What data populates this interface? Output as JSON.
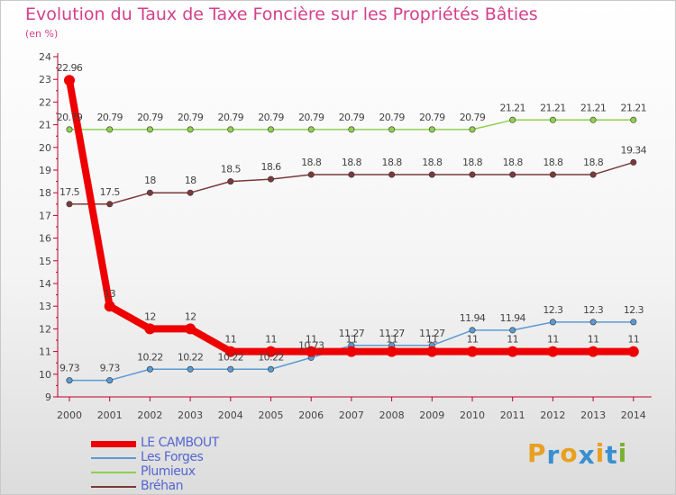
{
  "title": "Evolution du Taux de Taxe Foncière sur les Propriétés Bâties",
  "subtitle": "(en %)",
  "logo_text": "Proxiti",
  "colors": {
    "title": "#d4408a",
    "axis": "#c0002a",
    "legend_text": "#5566d0",
    "logo": [
      "#e8a020",
      "#3a8fd0",
      "#e8a020",
      "#3a8fd0",
      "#e8a020",
      "#3a8fd0",
      "#7ab030"
    ]
  },
  "chart_data": {
    "type": "line",
    "title": "Evolution du Taux de Taxe Foncière sur les Propriétés Bâties",
    "ylabel": "(en %)",
    "xlabel": "",
    "ylim": [
      9,
      24
    ],
    "yticks": [
      9,
      10,
      11,
      12,
      13,
      14,
      15,
      16,
      17,
      18,
      19,
      20,
      21,
      22,
      23,
      24
    ],
    "categories": [
      "2000",
      "2001",
      "2002",
      "2003",
      "2004",
      "2005",
      "2006",
      "2007",
      "2008",
      "2009",
      "2010",
      "2011",
      "2012",
      "2013",
      "2014"
    ],
    "series": [
      {
        "name": "LE CAMBOUT",
        "color": "#ee0000",
        "values": [
          22.96,
          13,
          12,
          12,
          11,
          11,
          11,
          11,
          11,
          11,
          11,
          11,
          11,
          11,
          11
        ],
        "labels": [
          "22.96",
          "13",
          "12",
          "12",
          "11",
          "11",
          "11",
          "11",
          "11",
          "11",
          "11",
          "11",
          "11",
          "11",
          "11"
        ]
      },
      {
        "name": "Les Forges",
        "color": "#5b9bd5",
        "values": [
          9.73,
          9.73,
          10.22,
          10.22,
          10.22,
          10.22,
          10.73,
          11.27,
          11.27,
          11.27,
          11.94,
          11.94,
          12.3,
          12.3,
          12.3
        ],
        "labels": [
          "9.73",
          "9.73",
          "10.22",
          "10.22",
          "10.22",
          "10.22",
          "10.73",
          "11.27",
          "11.27",
          "11.27",
          "11.94",
          "11.94",
          "12.3",
          "12.3",
          "12.3"
        ]
      },
      {
        "name": "Plumieux",
        "color": "#8fd14f",
        "values": [
          20.79,
          20.79,
          20.79,
          20.79,
          20.79,
          20.79,
          20.79,
          20.79,
          20.79,
          20.79,
          20.79,
          21.21,
          21.21,
          21.21,
          21.21
        ],
        "labels": [
          "20.79",
          "20.79",
          "20.79",
          "20.79",
          "20.79",
          "20.79",
          "20.79",
          "20.79",
          "20.79",
          "20.79",
          "20.79",
          "21.21",
          "21.21",
          "21.21",
          "21.21"
        ]
      },
      {
        "name": "Bréhan",
        "color": "#7b3a3a",
        "values": [
          17.5,
          17.5,
          18,
          18,
          18.5,
          18.6,
          18.8,
          18.8,
          18.8,
          18.8,
          18.8,
          18.8,
          18.8,
          18.8,
          19.34
        ],
        "labels": [
          "17.5",
          "17.5",
          "18",
          "18",
          "18.5",
          "18.6",
          "18.8",
          "18.8",
          "18.8",
          "18.8",
          "18.8",
          "18.8",
          "18.8",
          "18.8",
          "19.34"
        ]
      }
    ],
    "legend_position": "bottom-left"
  }
}
